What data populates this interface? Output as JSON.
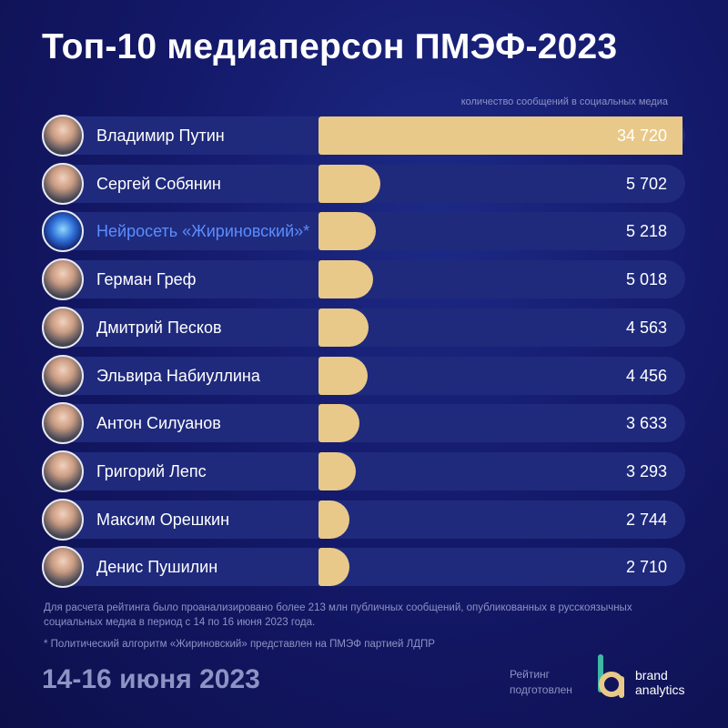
{
  "title": "Топ-10 медиаперсон ПМЭФ-2023",
  "subtitle": "количество сообщений в социальных медиа",
  "chart_data": {
    "type": "bar",
    "orientation": "horizontal",
    "title": "Топ-10 медиаперсон ПМЭФ-2023",
    "xlabel": "количество сообщений в социальных медиа",
    "categories": [
      "Владимир Путин",
      "Сергей Собянин",
      "Нейросеть «Жириновский»*",
      "Герман Греф",
      "Дмитрий Песков",
      "Эльвира Набиуллина",
      "Антон Силуанов",
      "Григорий Лепс",
      "Максим Орешкин",
      "Денис Пушилин"
    ],
    "values": [
      34720,
      5702,
      5218,
      5018,
      4563,
      4456,
      3633,
      3293,
      2744,
      2710
    ],
    "value_labels": [
      "34 720",
      "5 702",
      "5 218",
      "5 018",
      "4 563",
      "4 456",
      "3 633",
      "3 293",
      "2 744",
      "2 710"
    ],
    "xlim": [
      0,
      34720
    ],
    "bar_color": "#e9c98a",
    "highlight_label_color": "#5b8dff"
  },
  "notes": {
    "method": "Для расчета рейтинга было проанализировано более 213 млн публичных сообщений, опубликованных в русскоязычных социальных медиа в период с 14 по 16 июня 2023 года.",
    "footnote": "* Политический алгоритм «Жириновский»  представлен на ПМЭФ партией ЛДПР"
  },
  "footer": {
    "dates": "14-16 июня 2023",
    "prepared": "Рейтинг подготовлен",
    "brand_line1": "brand",
    "brand_line2": "analytics"
  },
  "colors": {
    "background": "#14196a",
    "row_background": "#1f2a7c",
    "accent_gold": "#e9c98a",
    "muted_text": "#8d93c4"
  }
}
